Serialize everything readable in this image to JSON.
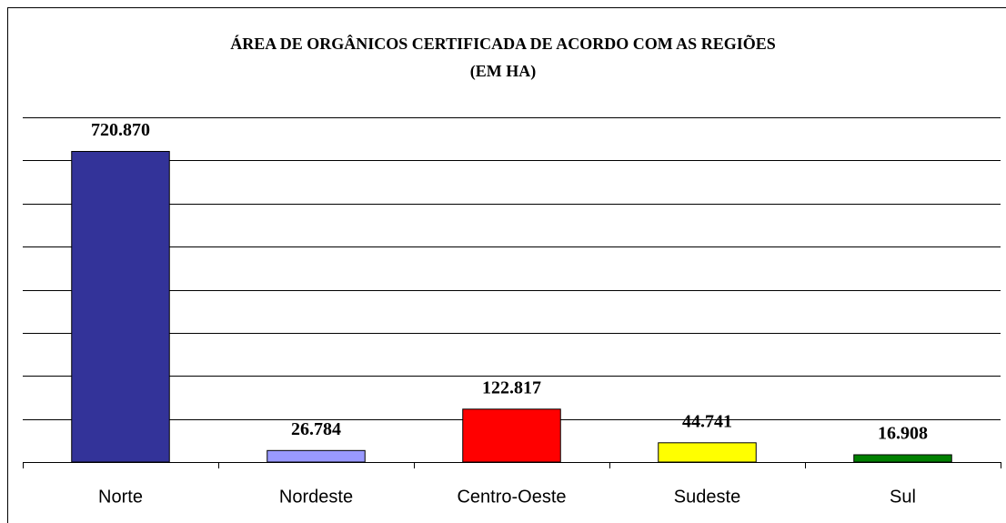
{
  "chart_data": {
    "type": "bar",
    "title": [
      "ÁREA DE ORGÂNICOS CERTIFICADA DE ACORDO COM AS REGIÕES",
      "(EM HA)"
    ],
    "categories": [
      "Norte",
      "Nordeste",
      "Centro-Oeste",
      "Sudeste",
      "Sul"
    ],
    "values": [
      720870,
      26784,
      122817,
      44741,
      16908
    ],
    "value_labels": [
      "720.870",
      "26.784",
      "122.817",
      "44.741",
      "16.908"
    ],
    "colors": [
      "#333399",
      "#9999ff",
      "#ff0000",
      "#ffff00",
      "#008000"
    ],
    "ylim": [
      0,
      800000
    ],
    "yticks": [
      0,
      100000,
      200000,
      300000,
      400000,
      500000,
      600000,
      700000,
      800000
    ],
    "grid": true
  }
}
